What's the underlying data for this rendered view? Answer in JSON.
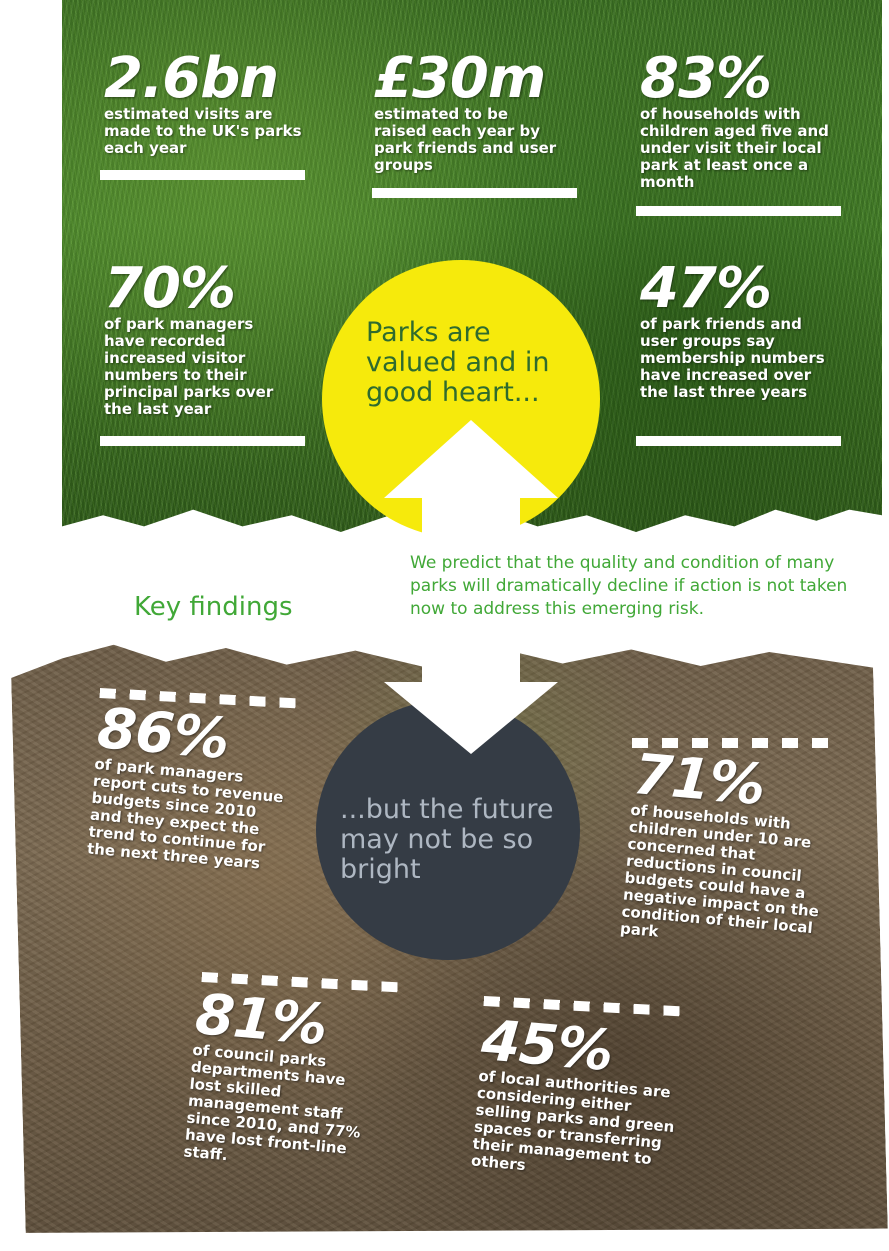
{
  "top": {
    "stat1": {
      "value": "2.6bn",
      "desc": "estimated visits are made to the UK's parks each year"
    },
    "stat2": {
      "value": "£30m",
      "desc": "estimated to be raised each year by park friends and user groups"
    },
    "stat3": {
      "value": "83%",
      "desc": "of households with children aged five and under visit their local park at least once a month"
    },
    "stat4": {
      "value": "70%",
      "desc": "of park managers have recorded increased visitor numbers to their principal parks over the last year"
    },
    "stat5": {
      "value": "47%",
      "desc": "of park friends and user groups say membership numbers have increased over the last three years"
    }
  },
  "center": {
    "positive": "Parks are valued and in good heart...",
    "negative": "...but the future may not be so bright",
    "heading": "Key findings",
    "prediction": "We predict that the quality and condition of many parks will dramatically decline if action is not taken now to address this emerging risk."
  },
  "bottom": {
    "stat1": {
      "value": "86%",
      "desc": "of park managers report cuts to revenue budgets since 2010 and they expect the trend to continue for the next three years"
    },
    "stat2": {
      "value": "71%",
      "desc": "of households with children under 10 are concerned that reductions in council budgets could have a negative impact on the condition of their local park"
    },
    "stat3": {
      "value": "81%",
      "desc": "of council parks departments have lost skilled management staff since 2010, and 77% have lost front-line staff."
    },
    "stat4": {
      "value": "45%",
      "desc": "of local authorities are considering either selling parks and green spaces or transferring their management to others"
    }
  },
  "colors": {
    "green_text": "#41a837",
    "yellow_circle": "#f6ea0c",
    "dark_circle": "#353c45",
    "grass": "#4b8a2c",
    "soil": "#7a6850"
  }
}
